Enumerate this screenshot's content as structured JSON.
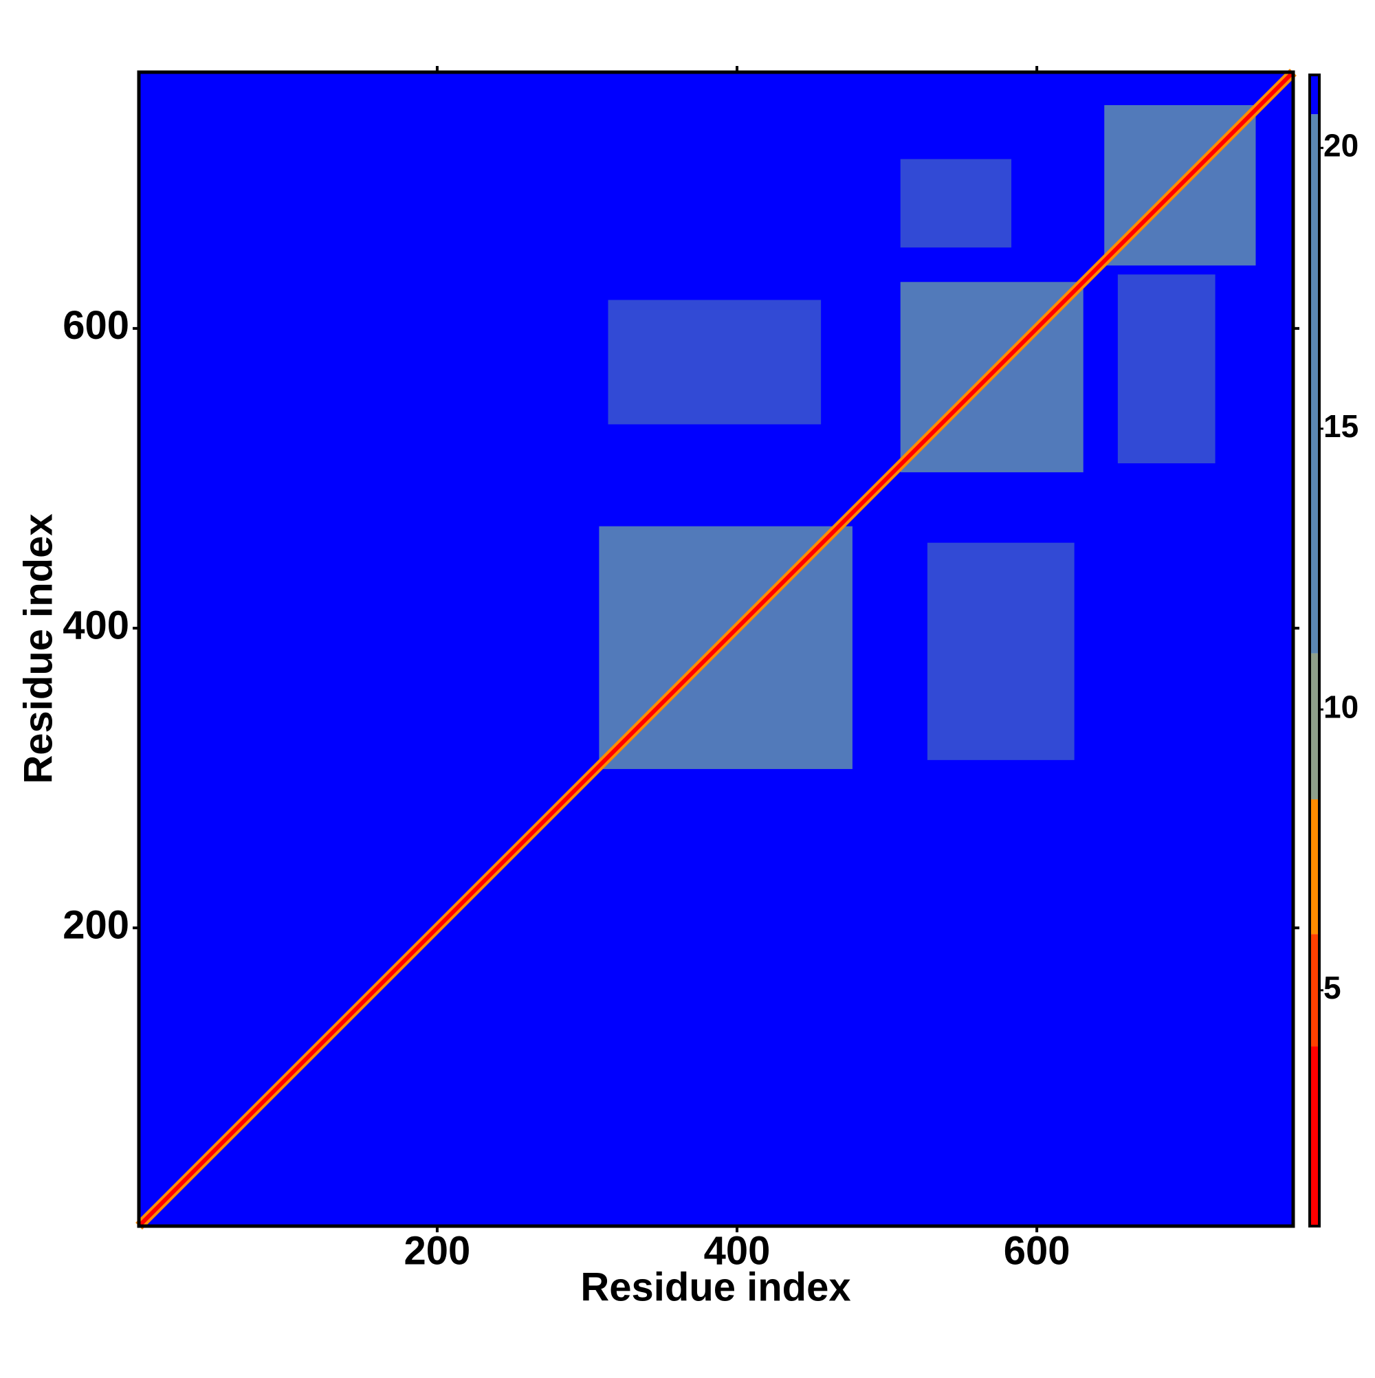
{
  "chart_data": {
    "type": "heatmap",
    "xlabel": "Residue index",
    "ylabel": "Residue index",
    "xlim": [
      1,
      771
    ],
    "ylim": [
      1,
      771
    ],
    "xticks": [
      200,
      400,
      600
    ],
    "yticks": [
      200,
      400,
      600
    ],
    "background_value": 21,
    "diagonal": {
      "value": 2,
      "flank_value": 7
    },
    "regions": [
      {
        "x": [
          314,
          456
        ],
        "y": [
          536,
          619
        ],
        "value": 17
      },
      {
        "x": [
          527,
          625
        ],
        "y": [
          312,
          457
        ],
        "value": 17
      },
      {
        "x": [
          509,
          583
        ],
        "y": [
          654,
          713
        ],
        "value": 17
      },
      {
        "x": [
          654,
          719
        ],
        "y": [
          510,
          636
        ],
        "value": 17
      },
      {
        "x": [
          308,
          477
        ],
        "y": [
          306,
          468
        ],
        "value": 14
      },
      {
        "x": [
          509,
          631
        ],
        "y": [
          504,
          631
        ],
        "value": 14
      },
      {
        "x": [
          645,
          746
        ],
        "y": [
          642,
          749
        ],
        "value": 14
      }
    ],
    "colorbar": {
      "lim": [
        0.8,
        21.3
      ],
      "ticks": [
        5,
        10,
        15,
        20
      ],
      "bins": [
        0.8,
        4,
        6,
        8.4,
        11,
        20.6,
        21.3
      ],
      "colors": [
        "#ff0000",
        "#ff4000",
        "#ff8c00",
        "#8fa08a",
        "#5b87b3",
        "#0000ff"
      ]
    }
  }
}
